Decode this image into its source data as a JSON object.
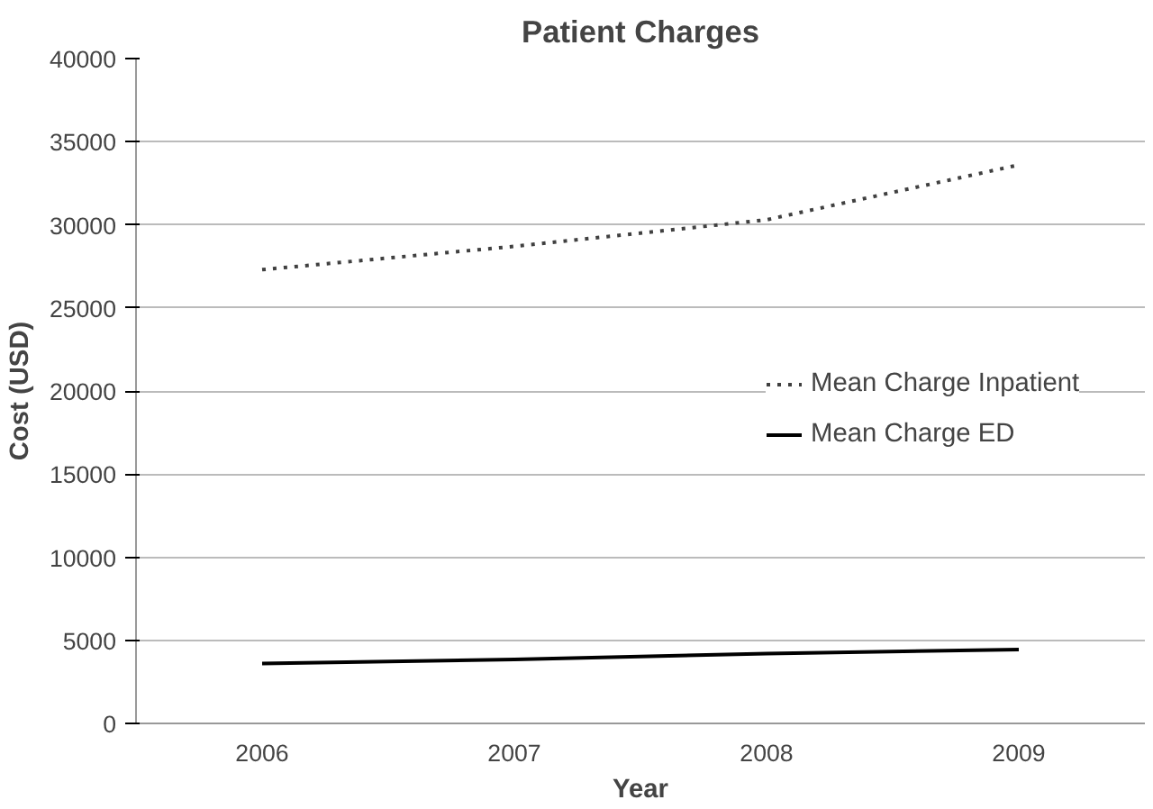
{
  "chart_data": {
    "type": "line",
    "title": "Patient Charges",
    "xlabel": "Year",
    "ylabel": "Cost (USD)",
    "categories": [
      "2006",
      "2007",
      "2008",
      "2009"
    ],
    "series": [
      {
        "name": "Mean Charge Inpatient",
        "color": "#404040",
        "line_style": "dotted",
        "values": [
          27300,
          28700,
          30300,
          33600
        ]
      },
      {
        "name": "Mean Charge ED",
        "color": "#000000",
        "line_style": "solid",
        "values": [
          3600,
          3850,
          4200,
          4450
        ]
      }
    ],
    "ylim": [
      0,
      40000
    ],
    "yticks": [
      0,
      5000,
      10000,
      15000,
      20000,
      25000,
      30000,
      35000,
      40000
    ],
    "grid": "y",
    "legend": "right",
    "marker": "none"
  }
}
